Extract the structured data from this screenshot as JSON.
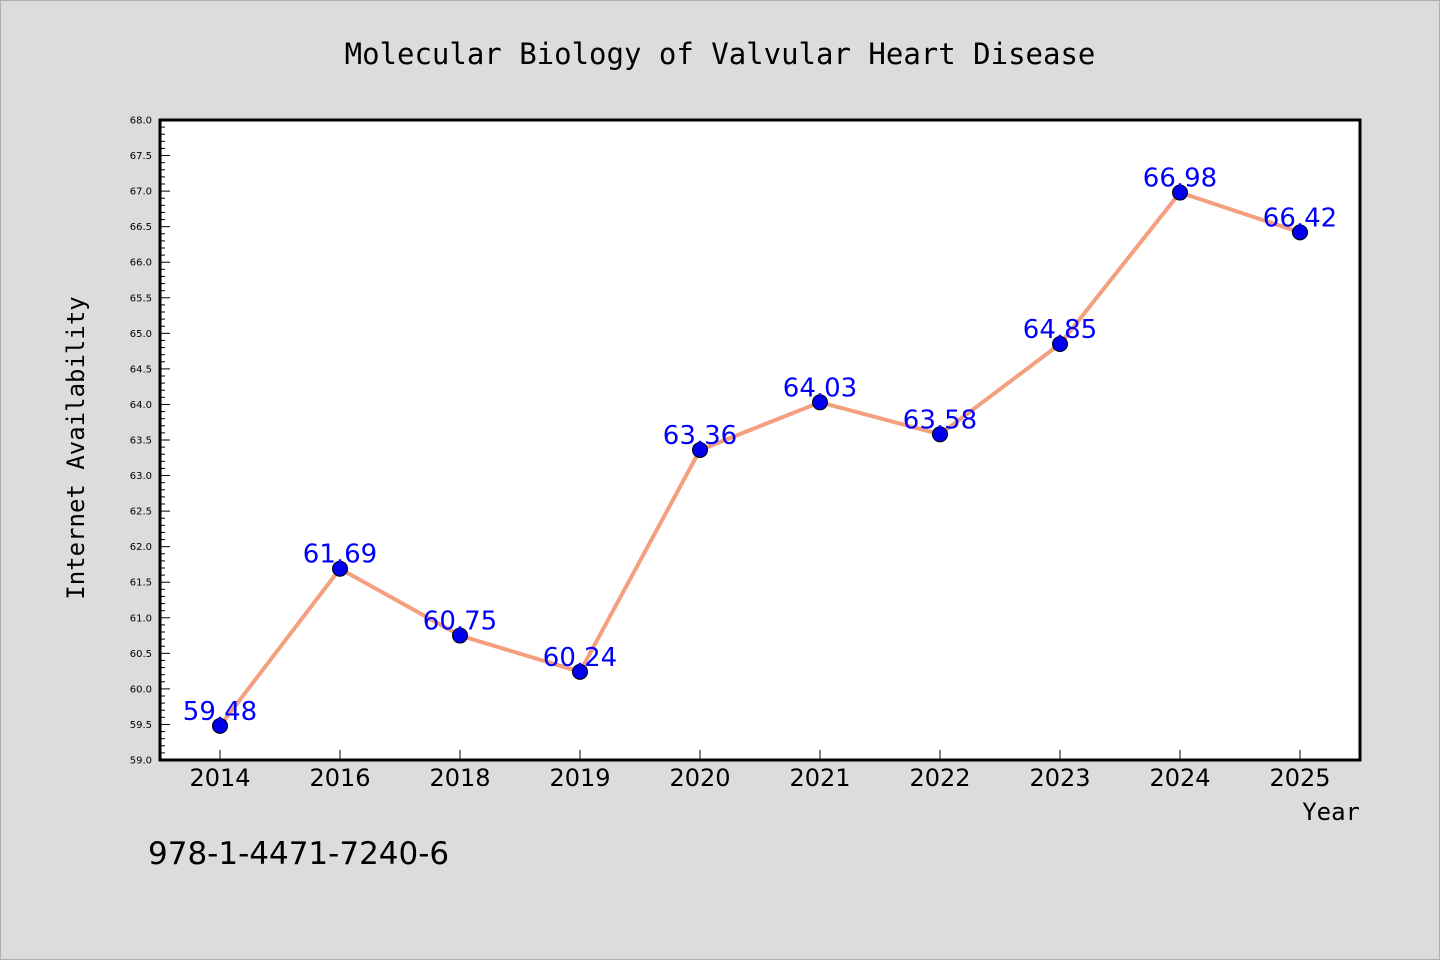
{
  "chart_data": {
    "type": "line",
    "title": "Molecular Biology of Valvular Heart Disease",
    "xlabel": "Year",
    "ylabel": "Internet Availability",
    "categories": [
      "2014",
      "2016",
      "2018",
      "2019",
      "2020",
      "2021",
      "2022",
      "2023",
      "2024",
      "2025"
    ],
    "series": [
      {
        "values": [
          59.48,
          61.69,
          60.75,
          60.24,
          63.36,
          64.03,
          63.58,
          64.85,
          66.98,
          66.42
        ],
        "line_color": "#f4a07e",
        "marker_color": "#0000ee"
      }
    ],
    "data_labels": [
      "59.48",
      "61.69",
      "60.75",
      "60.24",
      "63.36",
      "64.03",
      "63.58",
      "64.85",
      "66.98",
      "66.42"
    ],
    "ylim": [
      59.0,
      68.0
    ],
    "yticks": [
      "59.0",
      "59.5",
      "60.0",
      "60.5",
      "61.0",
      "61.5",
      "62.0",
      "62.5",
      "63.0",
      "63.5",
      "64.0",
      "64.5",
      "65.0",
      "65.5",
      "66.0",
      "66.5",
      "67.0",
      "67.5",
      "68.0"
    ],
    "grid": false,
    "annotation": "978-1-4471-7240-6",
    "label_color": "#0000ff",
    "background": "#dcdcdc",
    "plot_background": "#ffffff"
  }
}
